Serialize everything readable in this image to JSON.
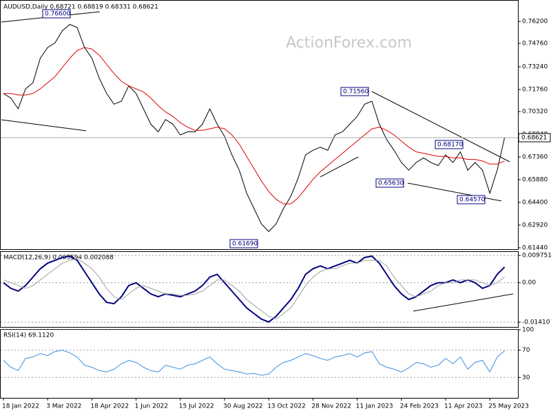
{
  "chart_data": [
    {
      "type": "line",
      "title": "AUDUSD,Daily 0.68721 0.68819 0.68331 0.68621",
      "watermark": "ActionForex.com",
      "last_price": "0.68621",
      "categories": [
        "18 Jan 2022",
        null,
        null,
        null,
        null,
        null,
        "3 Mar 2022",
        null,
        null,
        null,
        null,
        null,
        "18 Apr 2022",
        null,
        null,
        null,
        null,
        null,
        "1 Jun 2022",
        null,
        null,
        null,
        null,
        null,
        "15 Jul 2022",
        null,
        null,
        null,
        null,
        null,
        "30 Aug 2022",
        null,
        null,
        null,
        null,
        null,
        "13 Oct 2022",
        null,
        null,
        null,
        null,
        null,
        "28 Nov 2022",
        null,
        null,
        null,
        null,
        null,
        "11 Jan 2023",
        null,
        null,
        null,
        null,
        null,
        "24 Feb 2023",
        null,
        null,
        null,
        null,
        null,
        "11 Apr 2023",
        null,
        null,
        null,
        null,
        null,
        "25 May 2023",
        null,
        null
      ],
      "series": [
        {
          "color": "#000000",
          "values": [
            0.715,
            0.712,
            0.705,
            0.718,
            0.722,
            0.738,
            0.745,
            0.748,
            0.756,
            0.76,
            0.758,
            0.745,
            0.738,
            0.725,
            0.715,
            0.708,
            0.71,
            0.72,
            0.715,
            0.705,
            0.695,
            0.69,
            0.698,
            0.695,
            0.688,
            0.69,
            0.69,
            0.695,
            0.705,
            0.695,
            0.687,
            0.675,
            0.665,
            0.65,
            0.64,
            0.63,
            0.625,
            0.63,
            0.64,
            0.648,
            0.66,
            0.675,
            0.678,
            0.68,
            0.678,
            0.688,
            0.69,
            0.695,
            0.7,
            0.708,
            0.71,
            0.695,
            0.685,
            0.678,
            0.67,
            0.665,
            0.67,
            0.673,
            0.67,
            0.668,
            0.675,
            0.67,
            0.677,
            0.665,
            0.67,
            0.665,
            0.65,
            0.665,
            0.6862
          ]
        },
        {
          "color": "#e00000",
          "values": [
            0.715,
            0.715,
            0.714,
            0.714,
            0.715,
            0.718,
            0.722,
            0.726,
            0.732,
            0.738,
            0.743,
            0.745,
            0.744,
            0.74,
            0.734,
            0.728,
            0.723,
            0.72,
            0.718,
            0.716,
            0.712,
            0.707,
            0.703,
            0.7,
            0.696,
            0.693,
            0.691,
            0.691,
            0.692,
            0.693,
            0.692,
            0.688,
            0.682,
            0.674,
            0.666,
            0.658,
            0.651,
            0.646,
            0.643,
            0.643,
            0.647,
            0.653,
            0.659,
            0.664,
            0.668,
            0.672,
            0.676,
            0.68,
            0.684,
            0.688,
            0.692,
            0.693,
            0.691,
            0.688,
            0.684,
            0.68,
            0.677,
            0.676,
            0.675,
            0.674,
            0.674,
            0.673,
            0.673,
            0.672,
            0.672,
            0.671,
            0.669,
            0.669,
            0.671
          ]
        }
      ],
      "annotations": [
        "0.76600",
        "0.71560",
        "0.68170",
        "0.65630",
        "0.64570",
        "0.61690"
      ],
      "ylim": [
        0.6135,
        0.7755
      ],
      "yticks": [
        {
          "value": 0.762,
          "label": "0.76200"
        },
        {
          "value": 0.7476,
          "label": "0.74760"
        },
        {
          "value": 0.7324,
          "label": "0.73240"
        },
        {
          "value": 0.7176,
          "label": "0.71760"
        },
        {
          "value": 0.7032,
          "label": "0.70320"
        },
        {
          "value": 0.6884,
          "label": "0.68840"
        },
        {
          "value": 0.6736,
          "label": "0.67360"
        },
        {
          "value": 0.6588,
          "label": "0.65880"
        },
        {
          "value": 0.644,
          "label": "0.64400"
        },
        {
          "value": 0.6292,
          "label": "0.62920"
        },
        {
          "value": 0.6144,
          "label": "0.61440"
        }
      ],
      "grid": false
    },
    {
      "type": "line",
      "title": "MACD(12,26,9) 0.005594 0.002088",
      "series": [
        {
          "color": "#00007f",
          "values": [
            0.0,
            -0.002,
            -0.003,
            -0.001,
            0.002,
            0.005,
            0.007,
            0.008,
            0.009,
            0.0095,
            0.008,
            0.004,
            0.0,
            -0.004,
            -0.007,
            -0.0075,
            -0.005,
            -0.001,
            0.0,
            -0.002,
            -0.004,
            -0.005,
            -0.004,
            -0.0045,
            -0.005,
            -0.004,
            -0.003,
            -0.001,
            0.002,
            0.003,
            0.0,
            -0.003,
            -0.006,
            -0.009,
            -0.011,
            -0.013,
            -0.014,
            -0.012,
            -0.009,
            -0.006,
            -0.002,
            0.003,
            0.005,
            0.006,
            0.005,
            0.006,
            0.007,
            0.008,
            0.007,
            0.009,
            0.0095,
            0.007,
            0.003,
            -0.001,
            -0.004,
            -0.006,
            -0.005,
            -0.003,
            -0.001,
            0.0,
            0.0,
            0.001,
            0.0,
            0.001,
            0.0,
            -0.002,
            -0.001,
            0.003,
            0.0056
          ]
        },
        {
          "color": "#a0a0a0",
          "values": [
            0.001,
            0.0,
            -0.001,
            -0.002,
            -0.001,
            0.001,
            0.003,
            0.005,
            0.007,
            0.008,
            0.0085,
            0.007,
            0.005,
            0.002,
            -0.002,
            -0.005,
            -0.006,
            -0.004,
            -0.002,
            -0.001,
            -0.002,
            -0.003,
            -0.004,
            -0.004,
            -0.0045,
            -0.0045,
            -0.004,
            -0.003,
            -0.001,
            0.001,
            0.001,
            -0.001,
            -0.003,
            -0.006,
            -0.008,
            -0.01,
            -0.012,
            -0.013,
            -0.011,
            -0.009,
            -0.005,
            -0.001,
            0.002,
            0.004,
            0.005,
            0.005,
            0.006,
            0.007,
            0.007,
            0.008,
            0.008,
            0.008,
            0.006,
            0.002,
            -0.001,
            -0.004,
            -0.005,
            -0.004,
            -0.003,
            -0.001,
            0.0,
            0.0,
            0.001,
            0.001,
            0.001,
            0.0,
            -0.001,
            0.0,
            0.0021
          ]
        }
      ],
      "ylim": [
        -0.0158,
        0.011
      ],
      "yticks": [
        0.009751,
        {
          "value": 0,
          "label": "0.00"
        },
        -0.014107
      ],
      "grid": false
    },
    {
      "type": "line",
      "title": "RSI(14) 69.1120",
      "series": [
        {
          "color": "#3c8ee0",
          "values": [
            55,
            45,
            40,
            58,
            60,
            65,
            62,
            68,
            70,
            66,
            60,
            48,
            45,
            40,
            38,
            42,
            50,
            55,
            52,
            45,
            40,
            38,
            48,
            45,
            42,
            48,
            50,
            55,
            60,
            50,
            42,
            40,
            38,
            35,
            36,
            33,
            35,
            45,
            52,
            55,
            60,
            65,
            62,
            58,
            55,
            60,
            62,
            65,
            60,
            66,
            68,
            50,
            45,
            42,
            38,
            44,
            52,
            50,
            45,
            48,
            58,
            50,
            60,
            42,
            52,
            55,
            38,
            60,
            69.112
          ]
        }
      ],
      "ylim": [
        0,
        100
      ],
      "yticks": [
        100,
        70,
        30
      ],
      "grid": false
    }
  ]
}
